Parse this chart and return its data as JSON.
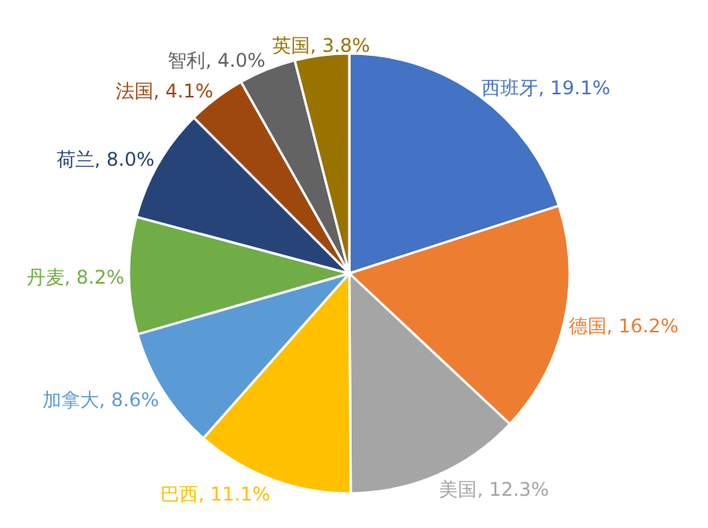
{
  "chart_data": {
    "type": "pie",
    "categories": [
      "西班牙",
      "德国",
      "美国",
      "巴西",
      "加拿大",
      "丹麦",
      "荷兰",
      "法国",
      "智利",
      "英国"
    ],
    "values": [
      19.1,
      16.2,
      12.3,
      11.1,
      8.6,
      8.2,
      8.0,
      4.1,
      4.0,
      3.8
    ],
    "value_labels": [
      ", 19.1%",
      ", 16.2%",
      ", 12.3%",
      ", 11.1%",
      ", 8.6%",
      ", 8.2%",
      ", 8.0%",
      ", 4.1%",
      ", 4.0%",
      ", 3.8%"
    ],
    "colors": [
      "#4472c4",
      "#ed7d31",
      "#a5a5a5",
      "#ffc000",
      "#5b9bd5",
      "#70ad47",
      "#264478",
      "#9e480e",
      "#636363",
      "#997300"
    ]
  }
}
